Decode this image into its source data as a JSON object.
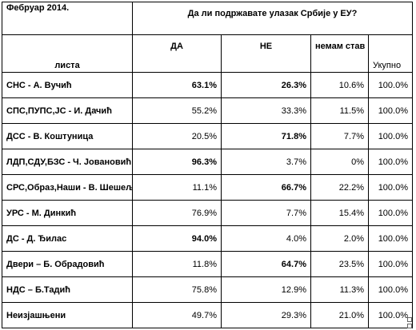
{
  "table": {
    "corner": "Фебруар 2014.",
    "question": "Да ли подржавате улазак Србије у ЕУ?",
    "headers": [
      "листа",
      "ДА",
      "НЕ",
      "немам став",
      "Укупно"
    ],
    "rows": [
      [
        "СНС - А. Вучић",
        "63.1%",
        "26.3%",
        "10.6%",
        "100.0%"
      ],
      [
        "СПС,ПУПС,ЈС  - И. Дачић",
        "55.2%",
        "33.3%",
        "11.5%",
        "100.0%"
      ],
      [
        "ДСС - В. Коштуница",
        "20.5%",
        "71.8%",
        "7.7%",
        "100.0%"
      ],
      [
        "ЛДП,СДУ,БЗС  - Ч. Јовановић",
        "96.3%",
        "3.7%",
        "0%",
        "100.0%"
      ],
      [
        "СРС,Образ,Наши - В. Шешељ",
        "11.1%",
        "66.7%",
        "22.2%",
        "100.0%"
      ],
      [
        "УРС - М. Динкић",
        "76.9%",
        "7.7%",
        "15.4%",
        "100.0%"
      ],
      [
        "ДС - Д. Ђилас",
        "94.0%",
        "4.0%",
        "2.0%",
        "100.0%"
      ],
      [
        "Двери – Б. Обрадовић",
        "11.8%",
        "64.7%",
        "23.5%",
        "100.0%"
      ],
      [
        "НДС – Б.Тадић",
        "75.8%",
        "12.9%",
        "11.3%",
        "100.0%"
      ],
      [
        "Неизјашњени",
        "49.7%",
        "29.3%",
        "21.0%",
        "100.0%"
      ]
    ]
  }
}
